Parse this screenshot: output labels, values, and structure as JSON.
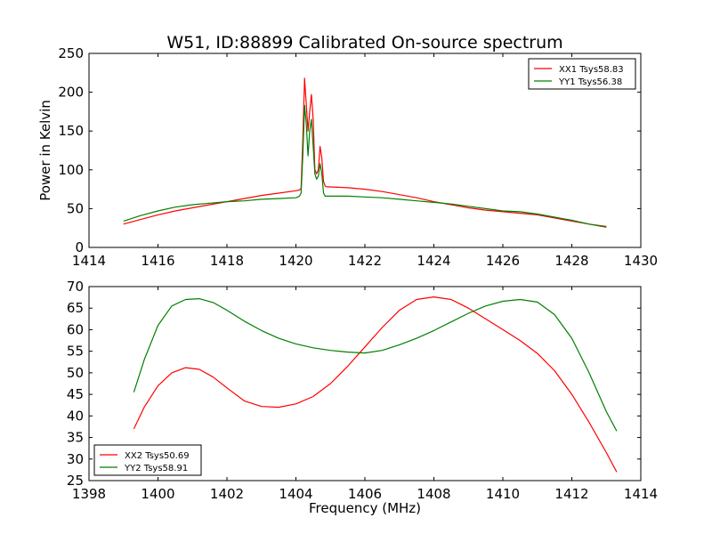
{
  "figure": {
    "title": "W51, ID:88899 Calibrated On-source spectrum",
    "xlabel": "Frequency (MHz)",
    "ylabel": "Power in Kelvin"
  },
  "chart_data": [
    {
      "type": "line",
      "title": "W51, ID:88899 Calibrated On-source spectrum",
      "xlabel": "",
      "ylabel": "Power in Kelvin",
      "xlim": [
        1414,
        1430
      ],
      "ylim": [
        0,
        250
      ],
      "xticks": [
        "1414",
        "1416",
        "1418",
        "1420",
        "1422",
        "1424",
        "1426",
        "1428",
        "1430"
      ],
      "yticks": [
        "0",
        "50",
        "100",
        "150",
        "200",
        "250"
      ],
      "legend_position": "top-right",
      "series": [
        {
          "name": "XX1 Tsys58.83",
          "color": "#ff0000",
          "x": [
            1415.0,
            1415.5,
            1416.0,
            1416.5,
            1417.0,
            1417.5,
            1418.0,
            1418.5,
            1419.0,
            1419.5,
            1420.0,
            1420.1,
            1420.15,
            1420.2,
            1420.25,
            1420.3,
            1420.35,
            1420.4,
            1420.45,
            1420.5,
            1420.55,
            1420.6,
            1420.65,
            1420.7,
            1420.75,
            1420.8,
            1420.85,
            1420.9,
            1421.0,
            1421.5,
            1422.0,
            1422.5,
            1423.0,
            1423.5,
            1424.0,
            1424.5,
            1425.0,
            1425.5,
            1426.0,
            1426.5,
            1427.0,
            1427.5,
            1428.0,
            1428.5,
            1429.0
          ],
          "y": [
            30,
            36,
            42,
            47,
            51,
            55,
            59,
            63,
            67,
            70,
            73,
            74,
            76,
            140,
            218,
            185,
            150,
            175,
            197,
            165,
            100,
            95,
            100,
            130,
            115,
            85,
            79,
            78,
            78,
            77,
            75,
            72,
            68,
            64,
            59,
            55,
            51,
            48,
            46,
            44,
            42,
            38,
            34,
            30,
            27
          ]
        },
        {
          "name": "YY1 Tsys56.38",
          "color": "#008000",
          "x": [
            1415.0,
            1415.5,
            1416.0,
            1416.5,
            1417.0,
            1417.5,
            1418.0,
            1418.5,
            1419.0,
            1419.5,
            1420.0,
            1420.1,
            1420.15,
            1420.2,
            1420.25,
            1420.3,
            1420.35,
            1420.4,
            1420.45,
            1420.5,
            1420.55,
            1420.6,
            1420.65,
            1420.7,
            1420.75,
            1420.8,
            1420.85,
            1420.9,
            1421.0,
            1421.5,
            1422.0,
            1422.5,
            1423.0,
            1423.5,
            1424.0,
            1424.5,
            1425.0,
            1425.5,
            1426.0,
            1426.5,
            1427.0,
            1427.5,
            1428.0,
            1428.5,
            1429.0
          ],
          "y": [
            34,
            41,
            47,
            52,
            55,
            57,
            59,
            60,
            62,
            63,
            64,
            66,
            70,
            120,
            183,
            160,
            118,
            150,
            165,
            130,
            95,
            88,
            92,
            108,
            95,
            70,
            66,
            66,
            66,
            66,
            65,
            64,
            62,
            60,
            58,
            56,
            53,
            50,
            47,
            46,
            43,
            39,
            35,
            30,
            26
          ]
        }
      ]
    },
    {
      "type": "line",
      "title": "",
      "xlabel": "Frequency (MHz)",
      "ylabel": "",
      "xlim": [
        1398,
        1414
      ],
      "ylim": [
        25,
        70
      ],
      "xticks": [
        "1398",
        "1400",
        "1402",
        "1404",
        "1406",
        "1408",
        "1410",
        "1412",
        "1414"
      ],
      "yticks": [
        "25",
        "30",
        "35",
        "40",
        "45",
        "50",
        "55",
        "60",
        "65",
        "70"
      ],
      "legend_position": "bottom-left",
      "series": [
        {
          "name": "XX2 Tsys50.69",
          "color": "#ff0000",
          "x": [
            1399.3,
            1399.6,
            1400.0,
            1400.4,
            1400.8,
            1401.2,
            1401.6,
            1402.0,
            1402.5,
            1403.0,
            1403.5,
            1404.0,
            1404.5,
            1405.0,
            1405.5,
            1406.0,
            1406.5,
            1407.0,
            1407.5,
            1408.0,
            1408.5,
            1409.0,
            1409.5,
            1410.0,
            1410.5,
            1411.0,
            1411.5,
            1412.0,
            1412.5,
            1413.0,
            1413.3
          ],
          "y": [
            37,
            42,
            47,
            50,
            51.2,
            50.8,
            49,
            46.5,
            43.5,
            42.2,
            42,
            42.8,
            44.5,
            47.5,
            51.5,
            56,
            60.5,
            64.5,
            67,
            67.6,
            67,
            65,
            62.5,
            60,
            57.5,
            54.5,
            50.5,
            45,
            38.5,
            31.5,
            27
          ]
        },
        {
          "name": "YY2 Tsys58.91",
          "color": "#008000",
          "x": [
            1399.3,
            1399.6,
            1400.0,
            1400.4,
            1400.8,
            1401.2,
            1401.6,
            1402.0,
            1402.5,
            1403.0,
            1403.5,
            1404.0,
            1404.5,
            1405.0,
            1405.5,
            1406.0,
            1406.5,
            1407.0,
            1407.5,
            1408.0,
            1408.5,
            1409.0,
            1409.5,
            1410.0,
            1410.5,
            1411.0,
            1411.5,
            1412.0,
            1412.5,
            1413.0,
            1413.3
          ],
          "y": [
            45.5,
            53,
            61,
            65.5,
            67,
            67.2,
            66.3,
            64.5,
            62,
            59.8,
            58,
            56.7,
            55.8,
            55.2,
            54.8,
            54.6,
            55.2,
            56.5,
            58,
            59.8,
            61.8,
            63.8,
            65.5,
            66.6,
            67,
            66.4,
            63.5,
            58,
            50,
            41,
            36.5
          ]
        }
      ]
    }
  ]
}
